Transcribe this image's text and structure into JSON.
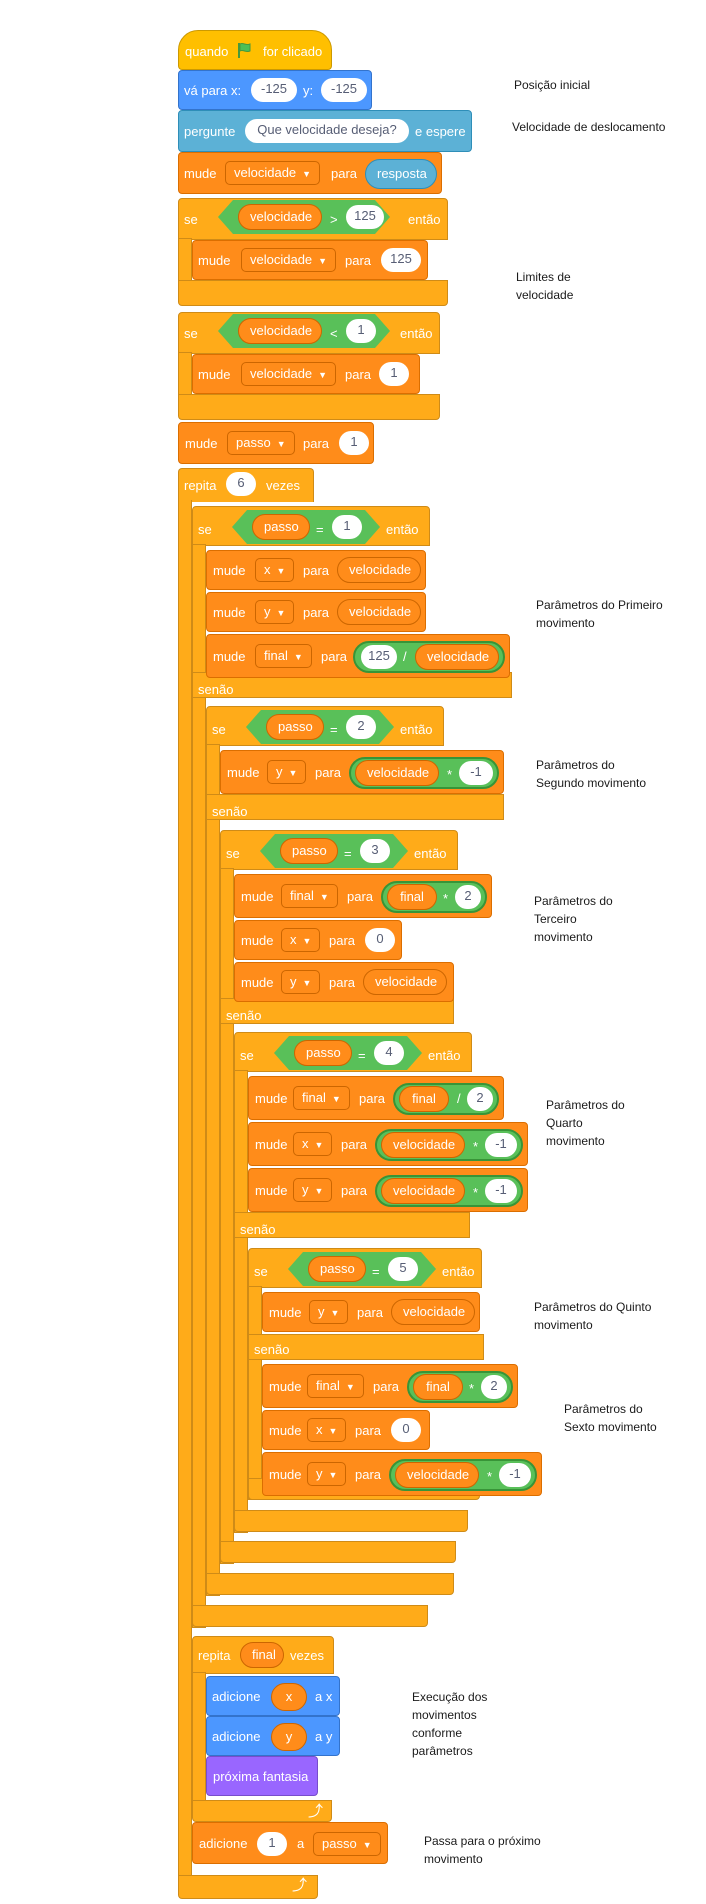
{
  "script": {
    "hat": {
      "when": "quando",
      "clicked": "for clicado"
    },
    "goto": {
      "label": "vá para x:",
      "x": "-125",
      "y_label": "y:",
      "y": "-125"
    },
    "ask": {
      "label": "pergunte",
      "question": "Que velocidade deseja?",
      "wait": "e espere"
    },
    "set_vel": {
      "label": "mude",
      "var": "velocidade",
      "to": "para",
      "value": "resposta"
    },
    "if1": {
      "if": "se",
      "left": "velocidade",
      "op": ">",
      "right": "125",
      "then": "então",
      "set_label": "mude",
      "set_var": "velocidade",
      "set_to": "para",
      "set_value": "125"
    },
    "if2": {
      "if": "se",
      "left": "velocidade",
      "op": "<",
      "right": "1",
      "then": "então",
      "set_label": "mude",
      "set_var": "velocidade",
      "set_to": "para",
      "set_value": "1"
    },
    "set_step": {
      "label": "mude",
      "var": "passo",
      "to": "para",
      "value": "1"
    },
    "repeat": {
      "label": "repita",
      "times": "6",
      "suffix": "vezes"
    },
    "m1": {
      "if": "se",
      "left": "passo",
      "op": "=",
      "right": "1",
      "then": "então",
      "s1_label": "mude",
      "s1_var": "x",
      "s1_to": "para",
      "s1_val": "velocidade",
      "s2_label": "mude",
      "s2_var": "y",
      "s2_to": "para",
      "s2_val": "velocidade",
      "s3_label": "mude",
      "s3_var": "final",
      "s3_to": "para",
      "s3_a": "125",
      "s3_op": "/",
      "s3_b": "velocidade",
      "else": "senão"
    },
    "m2": {
      "if": "se",
      "left": "passo",
      "op": "=",
      "right": "2",
      "then": "então",
      "s1_label": "mude",
      "s1_var": "y",
      "s1_to": "para",
      "s1_a": "velocidade",
      "s1_op": "*",
      "s1_b": "-1",
      "else": "senão"
    },
    "m3": {
      "if": "se",
      "left": "passo",
      "op": "=",
      "right": "3",
      "then": "então",
      "s1_label": "mude",
      "s1_var": "final",
      "s1_to": "para",
      "s1_a": "final",
      "s1_op": "*",
      "s1_b": "2",
      "s2_label": "mude",
      "s2_var": "x",
      "s2_to": "para",
      "s2_val": "0",
      "s3_label": "mude",
      "s3_var": "y",
      "s3_to": "para",
      "s3_val": "velocidade",
      "else": "senão"
    },
    "m4": {
      "if": "se",
      "left": "passo",
      "op": "=",
      "right": "4",
      "then": "então",
      "s1_label": "mude",
      "s1_var": "final",
      "s1_to": "para",
      "s1_a": "final",
      "s1_op": "/",
      "s1_b": "2",
      "s2_label": "mude",
      "s2_var": "x",
      "s2_to": "para",
      "s2_a": "velocidade",
      "s2_op": "*",
      "s2_b": "-1",
      "s3_label": "mude",
      "s3_var": "y",
      "s3_to": "para",
      "s3_a": "velocidade",
      "s3_op": "*",
      "s3_b": "-1",
      "else": "senão"
    },
    "m5": {
      "if": "se",
      "left": "passo",
      "op": "=",
      "right": "5",
      "then": "então",
      "s1_label": "mude",
      "s1_var": "y",
      "s1_to": "para",
      "s1_val": "velocidade",
      "else": "senão",
      "s2_label": "mude",
      "s2_var": "final",
      "s2_to": "para",
      "s2_a": "final",
      "s2_op": "*",
      "s2_b": "2",
      "s3_label": "mude",
      "s3_var": "x",
      "s3_to": "para",
      "s3_val": "0",
      "s4_label": "mude",
      "s4_var": "y",
      "s4_to": "para",
      "s4_a": "velocidade",
      "s4_op": "*",
      "s4_b": "-1"
    },
    "inner_repeat": {
      "label": "repita",
      "times": "final",
      "suffix": "vezes"
    },
    "change_x": {
      "label": "adicione",
      "value": "x",
      "to": "a x"
    },
    "change_y": {
      "label": "adicione",
      "value": "y",
      "to": "a y"
    },
    "next_costume": {
      "label": "próxima fantasia"
    },
    "change_step": {
      "label": "adicione",
      "value": "1",
      "to": "a",
      "var": "passo"
    }
  },
  "notes": {
    "initial_pos": "Posição inicial",
    "speed": "Velocidade de deslocamento",
    "limits_1": "Limites de",
    "limits_2": "velocidade",
    "first_1": "Parâmetros do Primeiro",
    "first_2": "movimento",
    "second_1": "Parâmetros do",
    "second_2": "Segundo movimento",
    "third_1": "Parâmetros do",
    "third_2": "Terceiro",
    "third_3": "movimento",
    "fourth_1": "Parâmetros do",
    "fourth_2": "Quarto",
    "fourth_3": "movimento",
    "fifth_1": "Parâmetros do Quinto",
    "fifth_2": "movimento",
    "sixth_1": "Parâmetros do",
    "sixth_2": "Sexto movimento",
    "exec_1": "Execução dos",
    "exec_2": "movimentos",
    "exec_3": "conforme",
    "exec_4": "parâmetros",
    "next_1": "Passa para o próximo",
    "next_2": "movimento"
  },
  "colors": {
    "events": "#ffbf00",
    "motion": "#4c97ff",
    "sensing": "#5cb1d6",
    "variables": "#ff8c1a",
    "control": "#ffab19",
    "looks": "#9966ff",
    "operators": "#59c059"
  }
}
